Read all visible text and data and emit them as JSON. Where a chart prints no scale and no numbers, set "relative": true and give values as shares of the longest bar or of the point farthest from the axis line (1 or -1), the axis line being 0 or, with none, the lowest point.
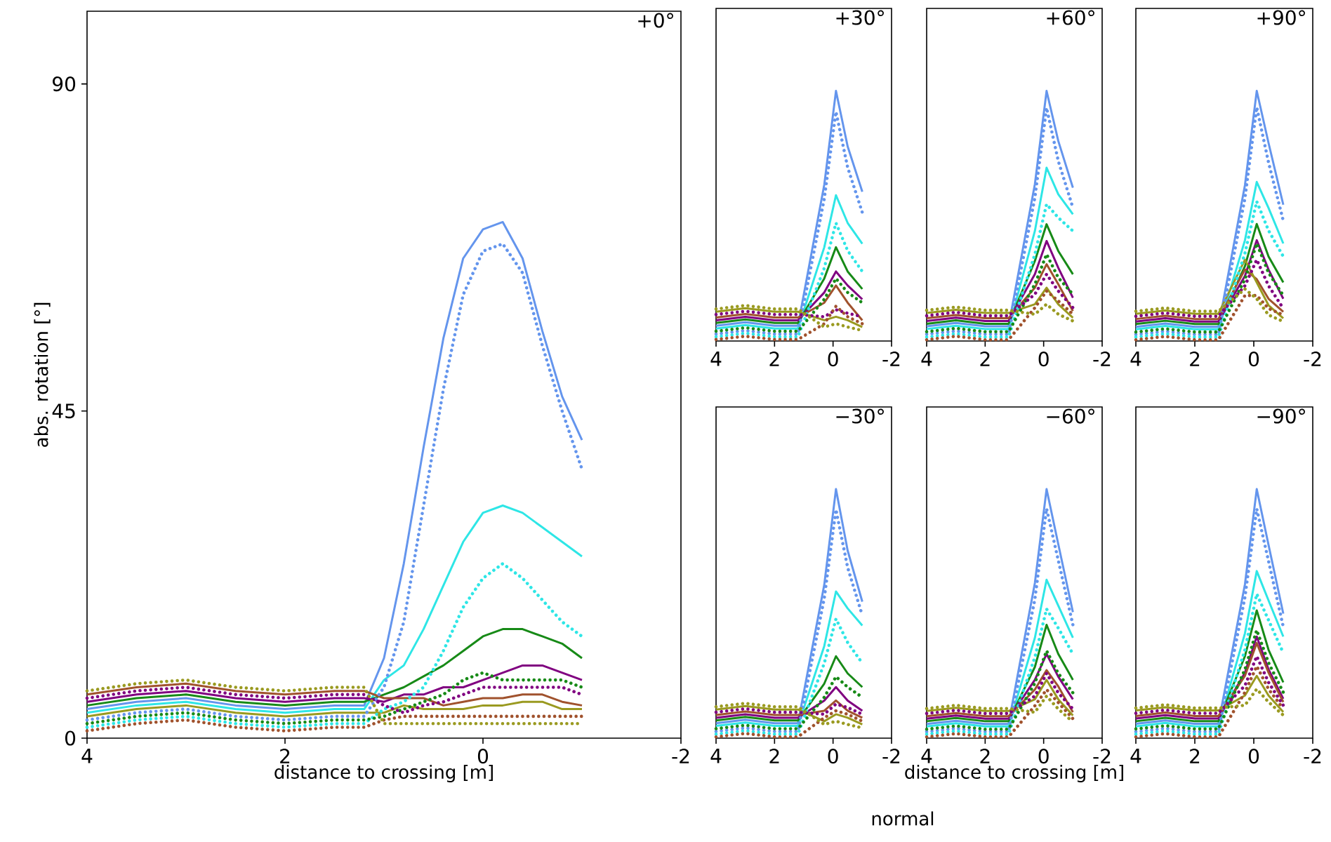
{
  "chart_data": [
    {
      "type": "line",
      "title": "+0°",
      "xlabel": "distance to crossing [m]",
      "ylabel": "abs. rotation [°]",
      "xlim": [
        4,
        -2
      ],
      "xticks": [
        4,
        2,
        0,
        -2
      ],
      "ylim": [
        0,
        100
      ],
      "yticks": [
        0,
        45,
        90
      ],
      "x": [
        4,
        3.5,
        3,
        2.5,
        2,
        1.5,
        1.2,
        1,
        0.8,
        0.6,
        0.4,
        0.2,
        0,
        -0.2,
        -0.4,
        -0.6,
        -0.8,
        -1
      ],
      "series": [
        {
          "color": "#6495ed",
          "line_style": "solid",
          "values": [
            4,
            5,
            5.5,
            4.5,
            4,
            4.5,
            4.5,
            11,
            24,
            40,
            55,
            66,
            70,
            71,
            66,
            56,
            47,
            41
          ]
        },
        {
          "color": "#6495ed",
          "line_style": "dotted",
          "values": [
            2.5,
            3.5,
            4,
            3,
            2.5,
            3,
            3,
            7,
            16,
            32,
            48,
            61,
            67,
            68,
            64,
            54,
            45,
            37
          ]
        },
        {
          "color": "#2ee6e6",
          "line_style": "solid",
          "values": [
            3.5,
            4.5,
            5,
            4,
            3.5,
            4,
            4,
            8,
            10,
            15,
            21,
            27,
            31,
            32,
            31,
            29,
            27,
            25
          ]
        },
        {
          "color": "#2ee6e6",
          "line_style": "dotted",
          "values": [
            1.5,
            2.5,
            3,
            2,
            1.5,
            2,
            2,
            4,
            5,
            7,
            12,
            18,
            22,
            24,
            22,
            19,
            16,
            14
          ]
        },
        {
          "color": "#178a17",
          "line_style": "solid",
          "values": [
            4.5,
            5.5,
            6,
            5,
            4.5,
            5,
            5,
            6,
            7,
            8.5,
            10,
            12,
            14,
            15,
            15,
            14,
            13,
            11
          ]
        },
        {
          "color": "#178a17",
          "line_style": "dotted",
          "values": [
            2,
            3,
            3.5,
            2.5,
            2,
            2.5,
            2.5,
            3,
            4,
            5,
            6,
            8,
            9,
            8,
            8,
            8,
            8,
            7
          ]
        },
        {
          "color": "#800080",
          "line_style": "solid",
          "values": [
            5,
            6,
            6.5,
            5.5,
            5,
            5.5,
            5.5,
            5,
            6,
            6,
            7,
            7,
            8,
            9,
            10,
            10,
            9,
            8
          ]
        },
        {
          "color": "#800080",
          "line_style": "dotted",
          "values": [
            5.5,
            6.5,
            7,
            6,
            5.5,
            6,
            6,
            4.5,
            3.5,
            4.5,
            5,
            6,
            7,
            7,
            7,
            7,
            7,
            6
          ]
        },
        {
          "color": "#a0522d",
          "line_style": "solid",
          "values": [
            6,
            7,
            7.5,
            6.5,
            6,
            6.5,
            6.5,
            5.5,
            5.5,
            5.5,
            4.5,
            5,
            5.5,
            5.5,
            6,
            6,
            5,
            4.5
          ]
        },
        {
          "color": "#a0522d",
          "line_style": "dotted",
          "values": [
            1,
            2,
            2.5,
            1.5,
            1,
            1.5,
            1.5,
            2.5,
            3,
            3,
            3,
            3,
            3,
            3,
            3,
            3,
            3,
            3
          ]
        },
        {
          "color": "#9a9a20",
          "line_style": "solid",
          "values": [
            3,
            4,
            4.5,
            3.5,
            3,
            3.5,
            3.5,
            3.5,
            4.5,
            4,
            4,
            4,
            4.5,
            4.5,
            5,
            5,
            4,
            4
          ]
        },
        {
          "color": "#9a9a20",
          "line_style": "dotted",
          "values": [
            6.5,
            7.5,
            8,
            7,
            6.5,
            7,
            7,
            2,
            2,
            2,
            2,
            2,
            2,
            2,
            2,
            2,
            2,
            2
          ]
        }
      ]
    },
    {
      "type": "line",
      "title": "+30°",
      "relative": true,
      "xlim": [
        4,
        -2
      ],
      "xticks": [
        4,
        2,
        0,
        -2
      ],
      "tick_labels": "x",
      "x": [
        4,
        3,
        2,
        1.2,
        0.3,
        -0.1,
        -0.5,
        -1
      ],
      "series": [
        {
          "color": "#6495ed",
          "line_style": "solid",
          "values": [
            0.061,
            0.075,
            0.061,
            0.061,
            0.625,
            1,
            0.778,
            0.597
          ]
        },
        {
          "color": "#6495ed",
          "line_style": "dotted",
          "values": [
            0.028,
            0.042,
            0.028,
            0.028,
            0.569,
            0.917,
            0.694,
            0.514
          ]
        },
        {
          "color": "#2ee6e6",
          "line_style": "solid",
          "values": [
            0.05,
            0.064,
            0.05,
            0.05,
            0.375,
            0.583,
            0.472,
            0.389
          ]
        },
        {
          "color": "#2ee6e6",
          "line_style": "dotted",
          "values": [
            0.017,
            0.031,
            0.017,
            0.017,
            0.292,
            0.472,
            0.361,
            0.278
          ]
        },
        {
          "color": "#178a17",
          "line_style": "solid",
          "values": [
            0.072,
            0.086,
            0.072,
            0.072,
            0.25,
            0.375,
            0.278,
            0.208
          ]
        },
        {
          "color": "#178a17",
          "line_style": "dotted",
          "values": [
            0.039,
            0.053,
            0.039,
            0.039,
            0.167,
            0.25,
            0.194,
            0.153
          ]
        },
        {
          "color": "#800080",
          "line_style": "solid",
          "values": [
            0.083,
            0.097,
            0.083,
            0.083,
            0.194,
            0.278,
            0.222,
            0.167
          ]
        },
        {
          "color": "#800080",
          "line_style": "dotted",
          "values": [
            0.106,
            0.119,
            0.106,
            0.106,
            0.097,
            0.125,
            0.111,
            0.097
          ]
        },
        {
          "color": "#a0522d",
          "line_style": "solid",
          "values": [
            0.094,
            0.108,
            0.094,
            0.094,
            0.153,
            0.222,
            0.153,
            0.083
          ]
        },
        {
          "color": "#a0522d",
          "line_style": "dotted",
          "values": [
            0.006,
            0.019,
            0.006,
            0.006,
            0.069,
            0.139,
            0.097,
            0.069
          ]
        },
        {
          "color": "#9a9a20",
          "line_style": "solid",
          "values": [
            0.117,
            0.131,
            0.117,
            0.117,
            0.083,
            0.097,
            0.083,
            0.056
          ]
        },
        {
          "color": "#9a9a20",
          "line_style": "dotted",
          "values": [
            0.128,
            0.142,
            0.128,
            0.128,
            0.056,
            0.069,
            0.056,
            0.042
          ]
        }
      ]
    },
    {
      "type": "line",
      "title": "+60°",
      "relative": true,
      "xlim": [
        4,
        -2
      ],
      "xticks": [
        4,
        2,
        0,
        -2
      ],
      "tick_labels": "x",
      "x": [
        4,
        3,
        2,
        1.2,
        0.3,
        -0.1,
        -0.5,
        -1
      ],
      "series": [
        {
          "color": "#6495ed",
          "line_style": "solid",
          "values": [
            0.059,
            0.072,
            0.059,
            0.059,
            0.627,
            1,
            0.8,
            0.613
          ]
        },
        {
          "color": "#6495ed",
          "line_style": "dotted",
          "values": [
            0.027,
            0.04,
            0.027,
            0.027,
            0.573,
            0.933,
            0.72,
            0.533
          ]
        },
        {
          "color": "#2ee6e6",
          "line_style": "solid",
          "values": [
            0.048,
            0.061,
            0.048,
            0.048,
            0.44,
            0.693,
            0.587,
            0.507
          ]
        },
        {
          "color": "#2ee6e6",
          "line_style": "dotted",
          "values": [
            0.016,
            0.029,
            0.016,
            0.016,
            0.347,
            0.547,
            0.493,
            0.44
          ]
        },
        {
          "color": "#178a17",
          "line_style": "solid",
          "values": [
            0.069,
            0.083,
            0.069,
            0.069,
            0.32,
            0.467,
            0.36,
            0.267
          ]
        },
        {
          "color": "#178a17",
          "line_style": "dotted",
          "values": [
            0.037,
            0.051,
            0.037,
            0.037,
            0.227,
            0.347,
            0.253,
            0.187
          ]
        },
        {
          "color": "#800080",
          "line_style": "solid",
          "values": [
            0.08,
            0.093,
            0.08,
            0.08,
            0.267,
            0.4,
            0.293,
            0.173
          ]
        },
        {
          "color": "#800080",
          "line_style": "dotted",
          "values": [
            0.101,
            0.115,
            0.101,
            0.101,
            0.187,
            0.267,
            0.2,
            0.133
          ]
        },
        {
          "color": "#a0522d",
          "line_style": "solid",
          "values": [
            0.091,
            0.104,
            0.091,
            0.091,
            0.213,
            0.307,
            0.227,
            0.12
          ]
        },
        {
          "color": "#a0522d",
          "line_style": "dotted",
          "values": [
            0.005,
            0.019,
            0.005,
            0.005,
            0.133,
            0.2,
            0.16,
            0.107
          ]
        },
        {
          "color": "#9a9a20",
          "line_style": "solid",
          "values": [
            0.112,
            0.125,
            0.112,
            0.112,
            0.147,
            0.213,
            0.147,
            0.093
          ]
        },
        {
          "color": "#9a9a20",
          "line_style": "dotted",
          "values": [
            0.123,
            0.136,
            0.123,
            0.123,
            0.107,
            0.147,
            0.107,
            0.08
          ]
        }
      ]
    },
    {
      "type": "line",
      "title": "+90°",
      "relative": true,
      "xlim": [
        4,
        -2
      ],
      "xticks": [
        4,
        2,
        0,
        -2
      ],
      "tick_labels": "x",
      "x": [
        4,
        3,
        2,
        1.2,
        0.3,
        -0.1,
        -0.5,
        -1
      ],
      "series": [
        {
          "color": "#6495ed",
          "line_style": "solid",
          "values": [
            0.057,
            0.07,
            0.057,
            0.057,
            0.623,
            1,
            0.792,
            0.545
          ]
        },
        {
          "color": "#6495ed",
          "line_style": "dotted",
          "values": [
            0.026,
            0.039,
            0.026,
            0.026,
            0.571,
            0.935,
            0.714,
            0.481
          ]
        },
        {
          "color": "#2ee6e6",
          "line_style": "solid",
          "values": [
            0.047,
            0.06,
            0.047,
            0.047,
            0.403,
            0.636,
            0.532,
            0.39
          ]
        },
        {
          "color": "#2ee6e6",
          "line_style": "dotted",
          "values": [
            0.016,
            0.029,
            0.016,
            0.016,
            0.351,
            0.558,
            0.442,
            0.338
          ]
        },
        {
          "color": "#178a17",
          "line_style": "solid",
          "values": [
            0.068,
            0.081,
            0.068,
            0.068,
            0.299,
            0.468,
            0.338,
            0.234
          ]
        },
        {
          "color": "#178a17",
          "line_style": "dotted",
          "values": [
            0.036,
            0.049,
            0.036,
            0.036,
            0.247,
            0.39,
            0.273,
            0.182
          ]
        },
        {
          "color": "#800080",
          "line_style": "solid",
          "values": [
            0.078,
            0.091,
            0.078,
            0.078,
            0.26,
            0.403,
            0.286,
            0.169
          ]
        },
        {
          "color": "#800080",
          "line_style": "dotted",
          "values": [
            0.099,
            0.112,
            0.099,
            0.099,
            0.221,
            0.325,
            0.221,
            0.13
          ]
        },
        {
          "color": "#a0522d",
          "line_style": "solid",
          "values": [
            0.088,
            0.101,
            0.088,
            0.088,
            0.286,
            0.247,
            0.169,
            0.117
          ]
        },
        {
          "color": "#a0522d",
          "line_style": "dotted",
          "values": [
            0.005,
            0.018,
            0.005,
            0.005,
            0.182,
            0.182,
            0.13,
            0.104
          ]
        },
        {
          "color": "#9a9a20",
          "line_style": "solid",
          "values": [
            0.109,
            0.122,
            0.109,
            0.109,
            0.325,
            0.234,
            0.143,
            0.091
          ]
        },
        {
          "color": "#9a9a20",
          "line_style": "dotted",
          "values": [
            0.119,
            0.132,
            0.119,
            0.119,
            0.208,
            0.169,
            0.104,
            0.078
          ]
        }
      ]
    },
    {
      "type": "line",
      "title": "−30°",
      "relative": true,
      "xlim": [
        4,
        -2
      ],
      "xticks": [
        4,
        2,
        0,
        -2
      ],
      "tick_labels": "x",
      "x": [
        4,
        3,
        2,
        1.2,
        0.3,
        -0.1,
        -0.5,
        -1
      ],
      "series": [
        {
          "color": "#6495ed",
          "line_style": "solid",
          "values": [
            0.06,
            0.074,
            0.06,
            0.06,
            0.616,
            1,
            0.753,
            0.548
          ]
        },
        {
          "color": "#6495ed",
          "line_style": "dotted",
          "values": [
            0.027,
            0.041,
            0.027,
            0.027,
            0.562,
            0.918,
            0.685,
            0.493
          ]
        },
        {
          "color": "#2ee6e6",
          "line_style": "solid",
          "values": [
            0.049,
            0.063,
            0.049,
            0.049,
            0.37,
            0.589,
            0.521,
            0.452
          ]
        },
        {
          "color": "#2ee6e6",
          "line_style": "dotted",
          "values": [
            0.016,
            0.03,
            0.016,
            0.016,
            0.301,
            0.479,
            0.384,
            0.301
          ]
        },
        {
          "color": "#178a17",
          "line_style": "solid",
          "values": [
            0.071,
            0.085,
            0.071,
            0.071,
            0.219,
            0.329,
            0.26,
            0.205
          ]
        },
        {
          "color": "#178a17",
          "line_style": "dotted",
          "values": [
            0.038,
            0.052,
            0.038,
            0.038,
            0.164,
            0.247,
            0.205,
            0.164
          ]
        },
        {
          "color": "#800080",
          "line_style": "solid",
          "values": [
            0.082,
            0.096,
            0.082,
            0.082,
            0.151,
            0.205,
            0.151,
            0.11
          ]
        },
        {
          "color": "#800080",
          "line_style": "dotted",
          "values": [
            0.104,
            0.118,
            0.104,
            0.104,
            0.096,
            0.137,
            0.123,
            0.096
          ]
        },
        {
          "color": "#a0522d",
          "line_style": "solid",
          "values": [
            0.093,
            0.107,
            0.093,
            0.093,
            0.11,
            0.151,
            0.11,
            0.082
          ]
        },
        {
          "color": "#a0522d",
          "line_style": "dotted",
          "values": [
            0.005,
            0.019,
            0.005,
            0.005,
            0.082,
            0.11,
            0.096,
            0.068
          ]
        },
        {
          "color": "#9a9a20",
          "line_style": "solid",
          "values": [
            0.115,
            0.129,
            0.115,
            0.115,
            0.068,
            0.096,
            0.082,
            0.055
          ]
        },
        {
          "color": "#9a9a20",
          "line_style": "dotted",
          "values": [
            0.126,
            0.14,
            0.126,
            0.126,
            0.055,
            0.068,
            0.055,
            0.041
          ]
        }
      ]
    },
    {
      "type": "line",
      "title": "−60°",
      "relative": true,
      "xlabel": "distance to crossing [m]",
      "annotations": [
        "normal"
      ],
      "xlim": [
        4,
        -2
      ],
      "xticks": [
        4,
        2,
        0,
        -2
      ],
      "tick_labels": "x",
      "x": [
        4,
        3,
        2,
        1.2,
        0.3,
        -0.1,
        -0.5,
        -1
      ],
      "series": [
        {
          "color": "#6495ed",
          "line_style": "solid",
          "values": [
            0.057,
            0.07,
            0.057,
            0.057,
            0.623,
            1,
            0.779,
            0.506
          ]
        },
        {
          "color": "#6495ed",
          "line_style": "dotted",
          "values": [
            0.026,
            0.039,
            0.026,
            0.026,
            0.558,
            0.922,
            0.714,
            0.455
          ]
        },
        {
          "color": "#2ee6e6",
          "line_style": "solid",
          "values": [
            0.047,
            0.06,
            0.047,
            0.047,
            0.403,
            0.636,
            0.532,
            0.403
          ]
        },
        {
          "color": "#2ee6e6",
          "line_style": "dotted",
          "values": [
            0.016,
            0.029,
            0.016,
            0.016,
            0.325,
            0.519,
            0.442,
            0.338
          ]
        },
        {
          "color": "#178a17",
          "line_style": "solid",
          "values": [
            0.068,
            0.081,
            0.068,
            0.068,
            0.286,
            0.455,
            0.338,
            0.234
          ]
        },
        {
          "color": "#178a17",
          "line_style": "dotted",
          "values": [
            0.036,
            0.049,
            0.036,
            0.036,
            0.221,
            0.351,
            0.26,
            0.182
          ]
        },
        {
          "color": "#800080",
          "line_style": "solid",
          "values": [
            0.078,
            0.091,
            0.078,
            0.078,
            0.234,
            0.338,
            0.247,
            0.156
          ]
        },
        {
          "color": "#800080",
          "line_style": "dotted",
          "values": [
            0.099,
            0.112,
            0.099,
            0.099,
            0.169,
            0.26,
            0.182,
            0.117
          ]
        },
        {
          "color": "#a0522d",
          "line_style": "solid",
          "values": [
            0.088,
            0.101,
            0.088,
            0.088,
            0.195,
            0.273,
            0.208,
            0.104
          ]
        },
        {
          "color": "#a0522d",
          "line_style": "dotted",
          "values": [
            0.005,
            0.018,
            0.005,
            0.005,
            0.13,
            0.195,
            0.143,
            0.078
          ]
        },
        {
          "color": "#9a9a20",
          "line_style": "solid",
          "values": [
            0.109,
            0.122,
            0.109,
            0.109,
            0.156,
            0.234,
            0.156,
            0.091
          ]
        },
        {
          "color": "#9a9a20",
          "line_style": "dotted",
          "values": [
            0.119,
            0.132,
            0.119,
            0.119,
            0.104,
            0.169,
            0.117,
            0.065
          ]
        }
      ]
    },
    {
      "type": "line",
      "title": "−90°",
      "relative": true,
      "xlim": [
        4,
        -2
      ],
      "xticks": [
        4,
        2,
        0,
        -2
      ],
      "tick_labels": "x",
      "x": [
        4,
        3,
        2,
        1.2,
        0.3,
        -0.1,
        -0.5,
        -1
      ],
      "series": [
        {
          "color": "#6495ed",
          "line_style": "solid",
          "values": [
            0.058,
            0.071,
            0.058,
            0.058,
            0.618,
            1,
            0.776,
            0.5
          ]
        },
        {
          "color": "#6495ed",
          "line_style": "dotted",
          "values": [
            0.026,
            0.039,
            0.026,
            0.026,
            0.566,
            0.921,
            0.711,
            0.447
          ]
        },
        {
          "color": "#2ee6e6",
          "line_style": "solid",
          "values": [
            0.047,
            0.061,
            0.047,
            0.047,
            0.421,
            0.671,
            0.553,
            0.408
          ]
        },
        {
          "color": "#2ee6e6",
          "line_style": "dotted",
          "values": [
            0.016,
            0.029,
            0.016,
            0.016,
            0.355,
            0.579,
            0.474,
            0.342
          ]
        },
        {
          "color": "#178a17",
          "line_style": "solid",
          "values": [
            0.068,
            0.082,
            0.068,
            0.068,
            0.329,
            0.513,
            0.355,
            0.224
          ]
        },
        {
          "color": "#178a17",
          "line_style": "dotted",
          "values": [
            0.037,
            0.05,
            0.037,
            0.037,
            0.276,
            0.434,
            0.303,
            0.184
          ]
        },
        {
          "color": "#800080",
          "line_style": "solid",
          "values": [
            0.079,
            0.092,
            0.079,
            0.079,
            0.263,
            0.408,
            0.276,
            0.158
          ]
        },
        {
          "color": "#800080",
          "line_style": "dotted",
          "values": [
            0.1,
            0.113,
            0.1,
            0.1,
            0.211,
            0.329,
            0.224,
            0.132
          ]
        },
        {
          "color": "#a0522d",
          "line_style": "solid",
          "values": [
            0.089,
            0.103,
            0.089,
            0.089,
            0.25,
            0.382,
            0.263,
            0.145
          ]
        },
        {
          "color": "#a0522d",
          "line_style": "dotted",
          "values": [
            0.005,
            0.018,
            0.005,
            0.005,
            0.184,
            0.289,
            0.197,
            0.118
          ]
        },
        {
          "color": "#9a9a20",
          "line_style": "solid",
          "values": [
            0.111,
            0.124,
            0.111,
            0.111,
            0.171,
            0.25,
            0.171,
            0.105
          ]
        },
        {
          "color": "#9a9a20",
          "line_style": "dotted",
          "values": [
            0.121,
            0.134,
            0.121,
            0.121,
            0.132,
            0.197,
            0.145,
            0.092
          ]
        }
      ]
    }
  ]
}
